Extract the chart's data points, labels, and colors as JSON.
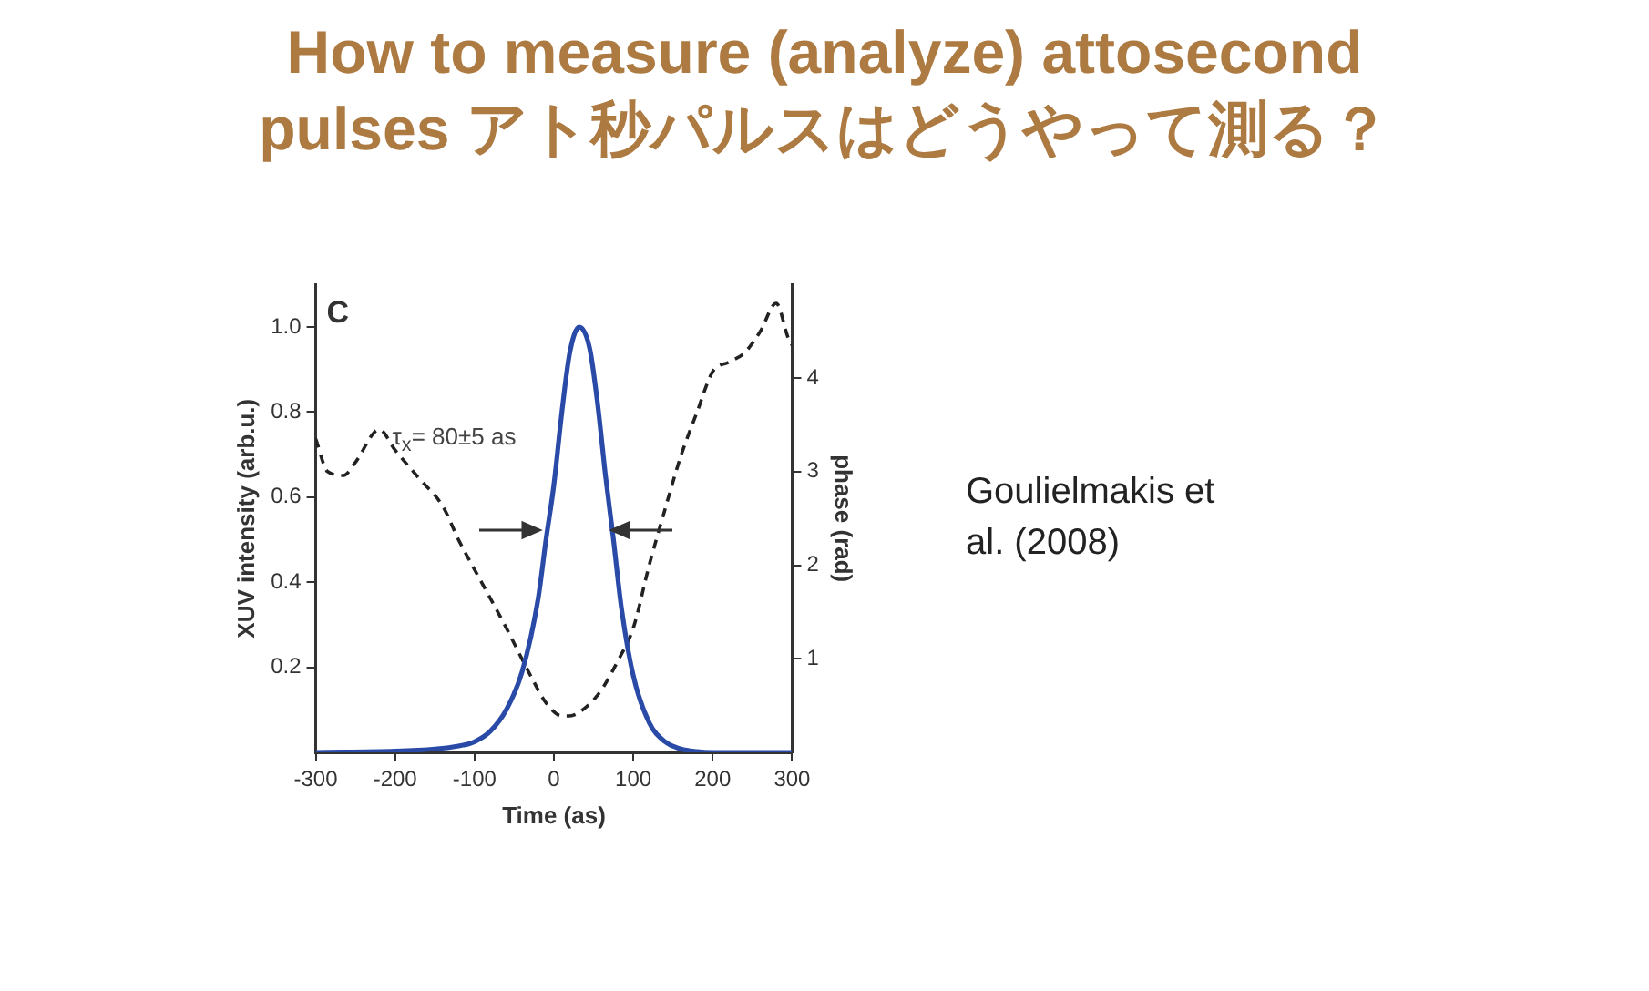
{
  "chart_data": {
    "type": "line",
    "title": "How to measure (analyze) attosecond pulses アト秒パルスはどうやって測る？",
    "xlabel": "Time (as)",
    "ylabel": "XUV intensity (arb.u.)",
    "y2label": "phase (rad)",
    "annotations": [
      "C",
      "τ$_{x}$= 80±5 as",
      "Goulielmakis et al. (2008)"
    ],
    "xlim": [
      -300,
      300
    ],
    "xticks": [
      -300,
      -200,
      -100,
      0,
      100,
      200,
      300
    ],
    "ylim": [
      0,
      1.1
    ],
    "yticks": [
      0.2,
      0.4,
      0.6,
      0.8,
      {
        "value": 1,
        "label": "1.0"
      }
    ],
    "y2lim": [
      0,
      5
    ],
    "y2ticks": [
      1,
      2,
      3,
      4
    ],
    "marker": "none",
    "legend": false,
    "series": [
      {
        "color": "#2a4aa8",
        "line_style": "solid",
        "x": [
          -300,
          -200,
          -150,
          -120,
          -100,
          -80,
          -60,
          -40,
          -20,
          -10,
          0,
          10,
          20,
          32,
          45,
          55,
          65,
          75,
          85,
          100,
          120,
          140,
          160,
          180,
          200,
          300
        ],
        "values": [
          0,
          0.003,
          0.008,
          0.015,
          0.025,
          0.05,
          0.1,
          0.19,
          0.36,
          0.5,
          0.63,
          0.8,
          0.94,
          1.0,
          0.95,
          0.82,
          0.65,
          0.5,
          0.34,
          0.18,
          0.07,
          0.025,
          0.008,
          0.002,
          0,
          0
        ]
      },
      {
        "color": "#222222",
        "line_style": "dashed",
        "axis": "y2",
        "x": [
          -300,
          -285,
          -265,
          -250,
          -220,
          -200,
          -170,
          -140,
          -120,
          -90,
          -60,
          -30,
          -10,
          10,
          20,
          40,
          60,
          80,
          100,
          120,
          140,
          160,
          180,
          200,
          220,
          240,
          260,
          280,
          295,
          300
        ],
        "values": [
          3.35,
          3.0,
          2.96,
          3.1,
          3.45,
          3.23,
          2.93,
          2.63,
          2.27,
          1.8,
          1.33,
          0.83,
          0.53,
          0.39,
          0.39,
          0.48,
          0.67,
          0.97,
          1.33,
          2.0,
          2.6,
          3.17,
          3.63,
          4.07,
          4.17,
          4.27,
          4.5,
          4.8,
          4.43,
          4.35
        ]
      }
    ]
  }
}
